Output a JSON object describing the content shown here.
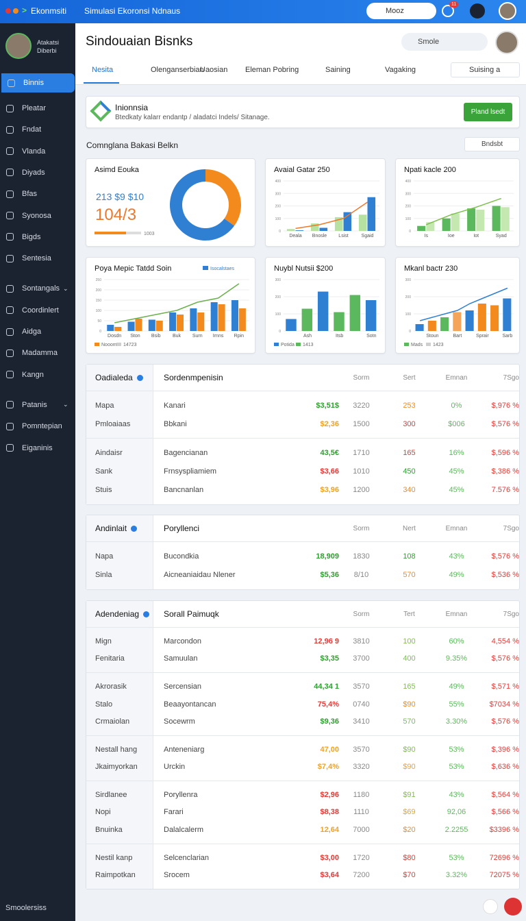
{
  "topbar": {
    "brand": "Ekonmsiti",
    "title": "Simulasi Ekoronsi Ndnaus",
    "search": "Mooz",
    "badge": "11"
  },
  "sidebar": {
    "user_lines": [
      "Atakatsi",
      "Diberbi"
    ],
    "sections": [
      [
        "Binnis"
      ],
      [
        "Pleatar",
        "Fndat",
        "Vlanda",
        "Diyads",
        "Bfas",
        "Syonosa",
        "Bigds",
        "Sentesia"
      ],
      [
        "Sontangals",
        "Coordinlert",
        "Aidga",
        "Madamma",
        "Kangn"
      ],
      [
        "Patanis",
        "Pomntepian",
        "Eiganinis"
      ]
    ],
    "footer": "Smoolersiss"
  },
  "header": {
    "title": "Sindouaian Bisnks",
    "search": "Smole"
  },
  "tabs": [
    "Nesita",
    "Olenganserbian",
    "Uaosian",
    "Eleman Pobring",
    "Saining",
    "Vagaking",
    "Suising a"
  ],
  "banner": {
    "title": "Inionnsia",
    "text": "Btedkaty kalarr endantp / aladatci Indels/ Sitanage.",
    "button": "Pland lsedt"
  },
  "section": {
    "title": "Comnglana Bakasi Belkn",
    "button": "Bndsbt"
  },
  "charts": [
    {
      "type": "pie",
      "title": "Asimd Eouka",
      "kpi": "213 $9 $10",
      "big": "104/3",
      "progress_label": "1003",
      "values": [
        35,
        65
      ],
      "colors": [
        "#f28a1e",
        "#2f7fd3"
      ]
    },
    {
      "type": "bar",
      "title": "Avaial Gatar 250",
      "ylim": [
        0,
        400
      ],
      "yticks": [
        0,
        100,
        200,
        300,
        400
      ],
      "categories": [
        "Deala",
        "Bnosle",
        "Lsist",
        "Sgaid"
      ],
      "series": [
        {
          "values": [
            15,
            60,
            110,
            130
          ],
          "color": "#b7e1a1"
        },
        {
          "values": [
            5,
            25,
            150,
            270
          ],
          "color": "#2f7fd3"
        },
        {
          "type": "line",
          "values": [
            20,
            50,
            100,
            230
          ],
          "color": "#f0782a"
        }
      ]
    },
    {
      "type": "bar",
      "title": "Npati kacle 200",
      "ylim": [
        0,
        400
      ],
      "yticks": [
        0,
        100,
        200,
        300,
        400
      ],
      "categories": [
        "Is",
        "Ioe",
        "Iot",
        "Syad"
      ],
      "series": [
        {
          "values": [
            40,
            100,
            180,
            200
          ],
          "color": "#5cb85c"
        },
        {
          "values": [
            70,
            140,
            170,
            190
          ],
          "color": "#c5e8b0"
        },
        {
          "type": "line",
          "values": [
            50,
            130,
            190,
            260
          ],
          "color": "#7cc04b"
        }
      ]
    },
    {
      "type": "bar",
      "title": "Poya Mepic Tatdd Soin",
      "ylim": [
        0,
        250
      ],
      "yticks": [
        0,
        50,
        100,
        150,
        200,
        250
      ],
      "categories": [
        "Dosdn",
        "Ston",
        "Bsib",
        "Buk",
        "Surn",
        "Irnns",
        "Rpin"
      ],
      "series": [
        {
          "values": [
            30,
            45,
            55,
            90,
            110,
            140,
            150
          ],
          "color": "#2f7fd3"
        },
        {
          "values": [
            20,
            60,
            50,
            80,
            90,
            130,
            110
          ],
          "color": "#f28a1e"
        },
        {
          "type": "line",
          "values": [
            40,
            60,
            80,
            100,
            140,
            160,
            230
          ],
          "color": "#6ab04c"
        }
      ],
      "top_legend": {
        "label": "Isocalstaes",
        "color": "#2f7fd3"
      },
      "legend": [
        {
          "label": "Nooom",
          "color": "#f28a1e"
        },
        {
          "label": "14723",
          "color": "#cfcfcf"
        }
      ]
    },
    {
      "type": "bar",
      "title": "Nuybl Nutsii $200",
      "ylim": [
        0,
        300
      ],
      "yticks": [
        0,
        100,
        200,
        300
      ],
      "categories": [
        null,
        "Ash",
        null,
        "Itsb",
        null,
        "Sotn"
      ],
      "series": [
        {
          "values": [
            70,
            130,
            230,
            110,
            210,
            180
          ],
          "colors": [
            "#2f7fd3",
            "#5cb85c",
            "#2f7fd3",
            "#5cb85c",
            "#5cb85c",
            "#2f7fd3"
          ]
        }
      ],
      "legend": [
        {
          "label": "Potida",
          "color": "#2f7fd3"
        },
        {
          "label": "1413",
          "color": "#5cb85c"
        }
      ]
    },
    {
      "type": "bar",
      "title": "Mkanl bactr 230",
      "ylim": [
        0,
        300
      ],
      "yticks": [
        0,
        100,
        200,
        300
      ],
      "categories": [
        null,
        "Stoun",
        null,
        "Bart",
        null,
        "Sprair",
        null,
        "Sarb"
      ],
      "series": [
        {
          "values": [
            40,
            60,
            80,
            110,
            120,
            160,
            150,
            190
          ],
          "colors": [
            "#2f7fd3",
            "#f28a1e",
            "#5cb85c",
            "#f5a55a",
            "#2f7fd3",
            "#f28a1e",
            "#f28a1e",
            "#2f7fd3"
          ]
        },
        {
          "type": "line",
          "values": [
            60,
            80,
            100,
            120,
            160,
            190,
            220,
            250
          ],
          "color": "#2f7fd3"
        }
      ],
      "legend": [
        {
          "label": "Mads",
          "color": "#5cb85c"
        },
        {
          "label": "1423",
          "color": "#cfcfcf"
        }
      ]
    }
  ],
  "tables": [
    {
      "left_title": "Oadialeda",
      "title": "Sordenmpenisin",
      "columns": [
        "Sorm",
        "Sert",
        "Emnan",
        "7Sgo"
      ],
      "groups": [
        {
          "left": [
            "Mapa",
            "Pmloaiaas"
          ],
          "rows": [
            {
              "cells": [
                "Kanari",
                "$3,51$",
                "3220",
                "253",
                "0%",
                "$,976 %"
              ],
              "colors": [
                "#2e9e2e",
                "#f28a1e"
              ]
            },
            {
              "cells": [
                "Bbkani",
                "$2,36",
                "1500",
                "300",
                "$006",
                "$,576 %"
              ],
              "colors": [
                "#f2a31e",
                "#e53935"
              ]
            }
          ]
        },
        {
          "left": [
            "Aindaisr",
            "Sank",
            "Stuis"
          ],
          "rows": [
            {
              "cells": [
                "Bagencianan",
                "43,5€",
                "1710",
                "165",
                "16%",
                "$,596 %"
              ],
              "colors": [
                "#2e9e2e",
                "#e53935"
              ]
            },
            {
              "cells": [
                "Frnsyspliamiem",
                "$3,66",
                "1010",
                "450",
                "45%",
                "$,386 %"
              ],
              "colors": [
                "#e53935",
                "#2e9e2e"
              ]
            },
            {
              "cells": [
                "Bancnanlan",
                "$3,96",
                "1200",
                "340",
                "45%",
                "7.576 %"
              ],
              "colors": [
                "#f2a31e",
                "#f28a1e"
              ]
            }
          ]
        }
      ]
    },
    {
      "left_title": "Andinlait",
      "title": "Poryllenci",
      "columns": [
        "Sorm",
        "Nert",
        "Emnan",
        "7Sgo"
      ],
      "groups": [
        {
          "left": [
            "Napa",
            "Sinla"
          ],
          "rows": [
            {
              "cells": [
                "Bucondkia",
                "18,909",
                "1830",
                "108",
                "43%",
                "$,576 %"
              ],
              "colors": [
                "#2e9e2e",
                "#2e9e2e"
              ]
            },
            {
              "cells": [
                "Aicneaniaidau Nlener",
                "$5,36",
                "8/10",
                "570",
                "49%",
                "$,536 %"
              ],
              "colors": [
                "#2e9e2e",
                "#f28a1e"
              ]
            }
          ]
        }
      ]
    },
    {
      "left_title": "Adendeniag",
      "title": "Sorall Paimuqk",
      "columns": [
        "Sorm",
        "Tert",
        "Emnan",
        "7Sgo"
      ],
      "groups": [
        {
          "left": [
            "Mign",
            "Fenitaria"
          ],
          "rows": [
            {
              "cells": [
                "Marcondon",
                "12,96 9",
                "3810",
                "100",
                "60%",
                "4,554 %"
              ],
              "colors": [
                "#e53935",
                "#7cc04b"
              ]
            },
            {
              "cells": [
                "Samuulan",
                "$3,35",
                "3700",
                "400",
                "9.35%",
                "$,576 %"
              ],
              "colors": [
                "#2e9e2e",
                "#7cc04b"
              ]
            }
          ]
        },
        {
          "left": [
            "Akrorasik",
            "Stalo",
            "Crmaiolan"
          ],
          "rows": [
            {
              "cells": [
                "Sercensian",
                "44,34 1",
                "3570",
                "165",
                "49%",
                "$,571 %"
              ],
              "colors": [
                "#2e9e2e",
                "#7cc04b"
              ]
            },
            {
              "cells": [
                "Beaayontancan",
                "75,4%",
                "0740",
                "$90",
                "55%",
                "$7034 %"
              ],
              "colors": [
                "#e53935",
                "#f28a1e"
              ]
            },
            {
              "cells": [
                "Socewrm",
                "$9,36",
                "3410",
                "570",
                "3.30%",
                "$,576 %"
              ],
              "colors": [
                "#2e9e2e",
                "#7cc04b"
              ]
            }
          ]
        },
        {
          "left": [
            "Nestall hang",
            "Jkaimyorkan"
          ],
          "rows": [
            {
              "cells": [
                "Anteneniarg",
                "47,00",
                "3570",
                "$90",
                "53%",
                "$,396 %"
              ],
              "colors": [
                "#f2a31e",
                "#7cc04b"
              ]
            },
            {
              "cells": [
                "Urckin",
                "$7,4%",
                "3320",
                "$90",
                "53%",
                "$,636 %"
              ],
              "colors": [
                "#f2a31e",
                "#f2a31e"
              ]
            }
          ]
        },
        {
          "left": [
            "Sirdlanee",
            "Nopi",
            "Bnuinka"
          ],
          "rows": [
            {
              "cells": [
                "Poryllenra",
                "$2,96",
                "1180",
                "$91",
                "43%",
                "$,564 %"
              ],
              "colors": [
                "#e53935",
                "#7cc04b"
              ]
            },
            {
              "cells": [
                "Farari",
                "$8,38",
                "1110",
                "$69",
                "92,06",
                "$,566 %"
              ],
              "colors": [
                "#e53935",
                "#f2a31e"
              ]
            },
            {
              "cells": [
                "Dalalcalerm",
                "12,64",
                "7000",
                "$20",
                "2.2255",
                "$3396 %"
              ],
              "colors": [
                "#f2a31e",
                "#f28a1e"
              ]
            }
          ]
        },
        {
          "left": [
            "Nestil kanp",
            "Raimpotkan"
          ],
          "rows": [
            {
              "cells": [
                "Selcenclarian",
                "$3,00",
                "1720",
                "$80",
                "53%",
                "72696 %"
              ],
              "colors": [
                "#e53935",
                "#e53935"
              ]
            },
            {
              "cells": [
                "Srocem",
                "$3,64",
                "7200",
                "$70",
                "3.32%",
                "72075 %"
              ],
              "colors": [
                "#e53935",
                "#e53935"
              ]
            }
          ]
        }
      ]
    }
  ]
}
